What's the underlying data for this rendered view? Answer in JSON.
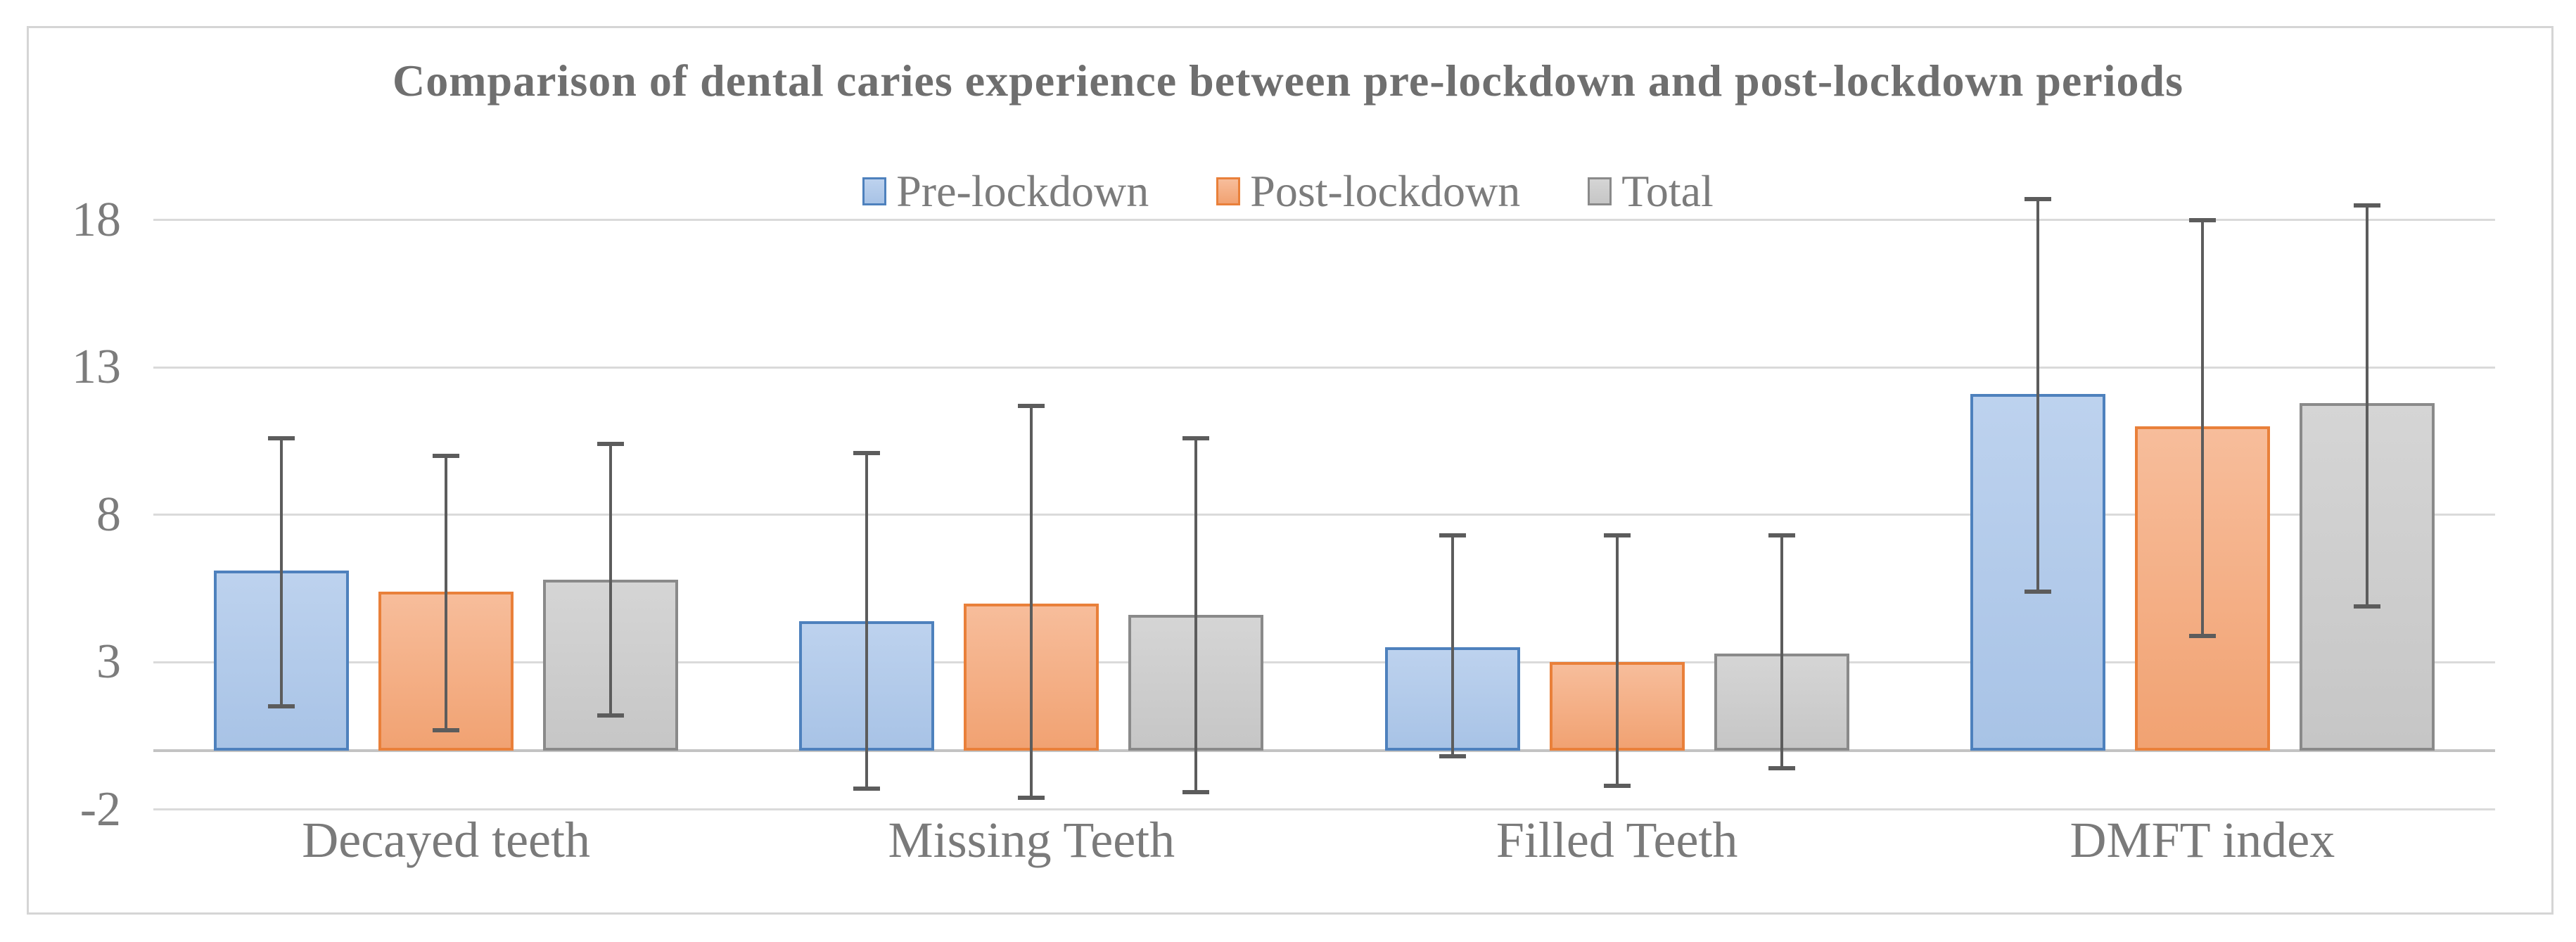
{
  "chart_data": {
    "type": "bar",
    "title": "Comparison of dental caries experience between pre-lockdown and post-lockdown periods",
    "categories": [
      "Decayed teeth",
      "Missing Teeth",
      "Filled Teeth",
      "DMFT index"
    ],
    "series": [
      {
        "name": "Pre-lockdown",
        "values": [
          6.1,
          4.4,
          3.5,
          12.1
        ],
        "error_low": [
          1.5,
          -1.3,
          -0.2,
          5.4
        ],
        "error_high": [
          10.6,
          10.1,
          7.3,
          18.7
        ],
        "fill_top": "#bdd2ee",
        "fill_bottom": "#a8c3e6",
        "border": "#4e81bd"
      },
      {
        "name": "Post-lockdown",
        "values": [
          5.4,
          5.0,
          3.0,
          11.0
        ],
        "error_low": [
          0.7,
          -1.6,
          -1.2,
          3.9
        ],
        "error_high": [
          10.0,
          11.7,
          7.3,
          18.0
        ],
        "fill_top": "#f7bd9b",
        "fill_bottom": "#f1a272",
        "border": "#e9803a"
      },
      {
        "name": "Total",
        "values": [
          5.8,
          4.6,
          3.3,
          11.8
        ],
        "error_low": [
          1.2,
          -1.4,
          -0.6,
          4.9
        ],
        "error_high": [
          10.4,
          10.6,
          7.3,
          18.5
        ],
        "fill_top": "#d5d5d5",
        "fill_bottom": "#c6c6c6",
        "border": "#8a8a8a"
      }
    ],
    "y_axis": {
      "ticks": [
        18,
        13,
        8,
        3,
        -2
      ],
      "min": -2,
      "max": 19.6,
      "tick_interval": 5,
      "baseline": 0
    },
    "grid": true,
    "legend_position": "top",
    "error_bar_color": "#5c5c5c",
    "gridline_color": "#dadada",
    "text_color": "#7c7c7c"
  }
}
